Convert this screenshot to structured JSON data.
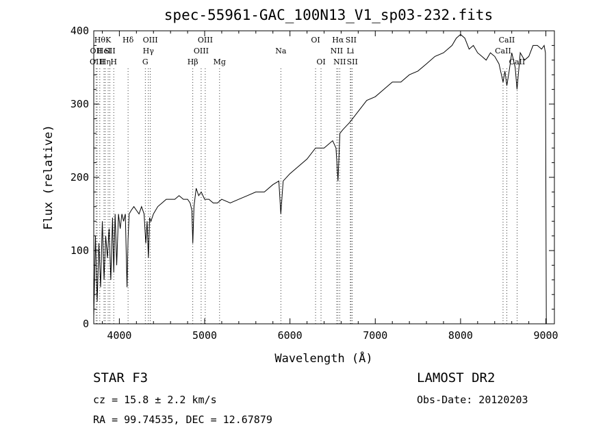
{
  "chart_data": {
    "type": "line",
    "title": "spec-55961-GAC_100N13_V1_sp03-232.fits",
    "xlabel": "Wavelength (Å)",
    "ylabel": "Flux (relative)",
    "xlim": [
      3700,
      9100
    ],
    "ylim": [
      0,
      400
    ],
    "xticks": [
      4000,
      5000,
      6000,
      7000,
      8000,
      9000
    ],
    "yticks": [
      0,
      100,
      200,
      300,
      400
    ],
    "grid": false,
    "series": [
      {
        "x": [
          3700,
          3720,
          3740,
          3760,
          3780,
          3800,
          3820,
          3840,
          3860,
          3880,
          3900,
          3920,
          3934,
          3950,
          3969,
          3990,
          4010,
          4030,
          4050,
          4070,
          4090,
          4102,
          4115,
          4140,
          4170,
          4200,
          4230,
          4260,
          4290,
          4310,
          4325,
          4340,
          4355,
          4370,
          4400,
          4450,
          4500,
          4550,
          4600,
          4650,
          4700,
          4750,
          4800,
          4830,
          4850,
          4861,
          4875,
          4900,
          4930,
          4960,
          5000,
          5050,
          5100,
          5150,
          5200,
          5300,
          5400,
          5500,
          5600,
          5700,
          5800,
          5870,
          5893,
          5920,
          6000,
          6100,
          6200,
          6300,
          6400,
          6500,
          6540,
          6563,
          6585,
          6620,
          6700,
          6800,
          6900,
          7000,
          7100,
          7200,
          7300,
          7400,
          7500,
          7600,
          7700,
          7800,
          7900,
          7950,
          8000,
          8050,
          8100,
          8150,
          8200,
          8250,
          8300,
          8350,
          8400,
          8450,
          8498,
          8520,
          8542,
          8570,
          8600,
          8640,
          8662,
          8700,
          8750,
          8800,
          8850,
          8900,
          8950,
          8980,
          8995,
          9000,
          9005
        ],
        "y": [
          10,
          120,
          30,
          110,
          50,
          140,
          60,
          120,
          90,
          130,
          60,
          145,
          70,
          150,
          80,
          150,
          130,
          150,
          140,
          150,
          50,
          115,
          150,
          155,
          160,
          155,
          150,
          160,
          150,
          110,
          140,
          90,
          145,
          140,
          150,
          160,
          165,
          170,
          170,
          170,
          175,
          170,
          170,
          165,
          155,
          110,
          160,
          185,
          175,
          180,
          170,
          170,
          165,
          165,
          170,
          165,
          170,
          175,
          180,
          180,
          190,
          195,
          150,
          195,
          205,
          215,
          225,
          240,
          240,
          250,
          240,
          195,
          260,
          265,
          275,
          290,
          305,
          310,
          320,
          330,
          330,
          340,
          345,
          355,
          365,
          370,
          380,
          390,
          395,
          390,
          375,
          380,
          370,
          365,
          360,
          370,
          365,
          355,
          330,
          345,
          325,
          345,
          370,
          350,
          320,
          370,
          360,
          365,
          380,
          380,
          375,
          380,
          370,
          200,
          0
        ]
      }
    ],
    "lines": [
      {
        "wave": 3727,
        "label": "OII",
        "row": 1
      },
      {
        "wave": 3740,
        "label": "OIII",
        "row": 2
      },
      {
        "wave": 3771,
        "label": "Hθ",
        "row": 0
      },
      {
        "wave": 3820,
        "label": "HeI",
        "row": 1
      },
      {
        "wave": 3835,
        "label": "Hη",
        "row": 2
      },
      {
        "wave": 3869,
        "label": "K",
        "row": 0
      },
      {
        "wave": 3889,
        "label": "SII",
        "row": 1
      },
      {
        "wave": 3934,
        "label": "H",
        "row": 2
      },
      {
        "wave": 4102,
        "label": "Hδ",
        "row": 0
      },
      {
        "wave": 4304,
        "label": "G",
        "row": 2
      },
      {
        "wave": 4340,
        "label": "Hγ",
        "row": 1
      },
      {
        "wave": 4363,
        "label": "OIII",
        "row": 0
      },
      {
        "wave": 4861,
        "label": "Hβ",
        "row": 2
      },
      {
        "wave": 4959,
        "label": "OIII",
        "row": 1
      },
      {
        "wave": 5007,
        "label": "OIII",
        "row": 0
      },
      {
        "wave": 5175,
        "label": "Mg",
        "row": 2
      },
      {
        "wave": 5893,
        "label": "Na",
        "row": 1
      },
      {
        "wave": 6300,
        "label": "OI",
        "row": 0
      },
      {
        "wave": 6364,
        "label": "OI",
        "row": 2
      },
      {
        "wave": 6548,
        "label": "NII",
        "row": 1
      },
      {
        "wave": 6563,
        "label": "Hα",
        "row": 0
      },
      {
        "wave": 6583,
        "label": "NII",
        "row": 2
      },
      {
        "wave": 6716,
        "label": "SII",
        "row": 0
      },
      {
        "wave": 6708,
        "label": "Li",
        "row": 1
      },
      {
        "wave": 6731,
        "label": "SII",
        "row": 2
      },
      {
        "wave": 8498,
        "label": "CaII",
        "row": 1
      },
      {
        "wave": 8542,
        "label": "CaII",
        "row": 0
      },
      {
        "wave": 8662,
        "label": "CaII",
        "row": 2
      }
    ]
  },
  "info": {
    "classification": "STAR    F3",
    "survey": "LAMOST DR2",
    "cz": "cz = 15.8 ± 2.2 km/s",
    "obs_date": "Obs-Date: 20120203",
    "radec": "RA =  99.74535, DEC =  12.67879"
  }
}
